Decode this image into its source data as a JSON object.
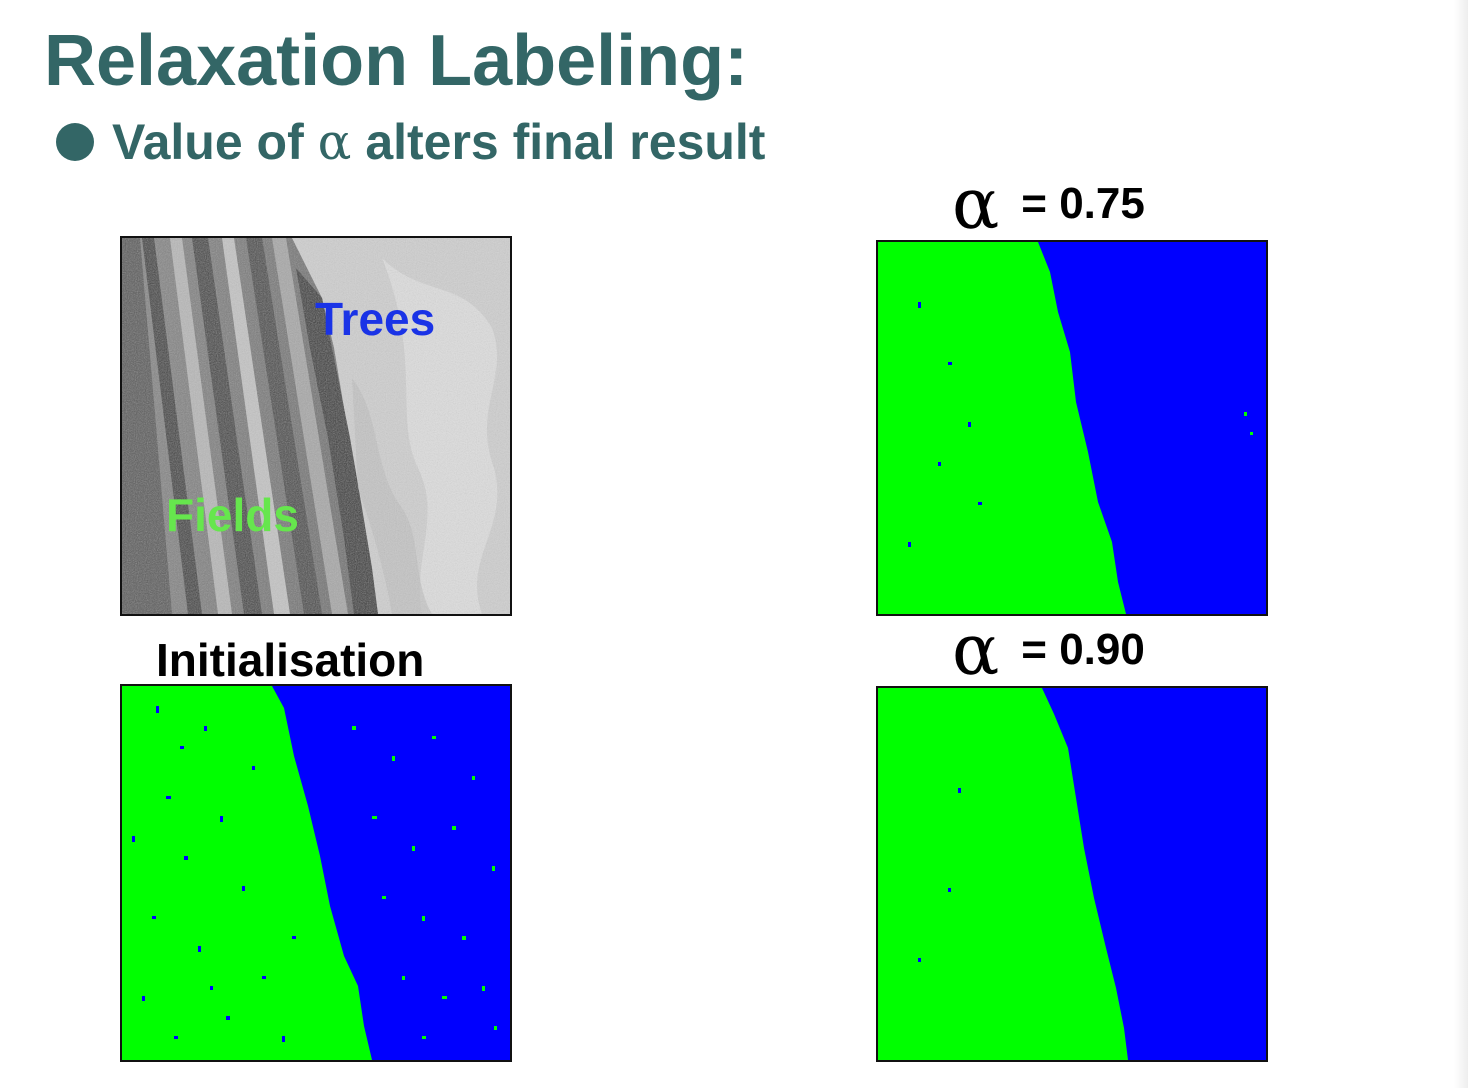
{
  "slide": {
    "title": "Relaxation Labeling:",
    "bullet": {
      "prefix": "Value of",
      "symbol": "α",
      "suffix": "alters final result"
    },
    "panels": {
      "original_image": {
        "labels": {
          "trees": "Trees",
          "fields": "Fields"
        },
        "label_colors": {
          "trees": "#1a33e6",
          "fields": "#66e64d"
        }
      },
      "initialisation": {
        "caption": "Initialisation"
      },
      "alpha_075": {
        "symbol": "α",
        "value": "= 0.75"
      },
      "alpha_090": {
        "symbol": "α",
        "value": "= 0.90"
      }
    },
    "colors": {
      "heading": "#336666",
      "fields_class": "#00ff00",
      "trees_class": "#0000ff"
    }
  }
}
